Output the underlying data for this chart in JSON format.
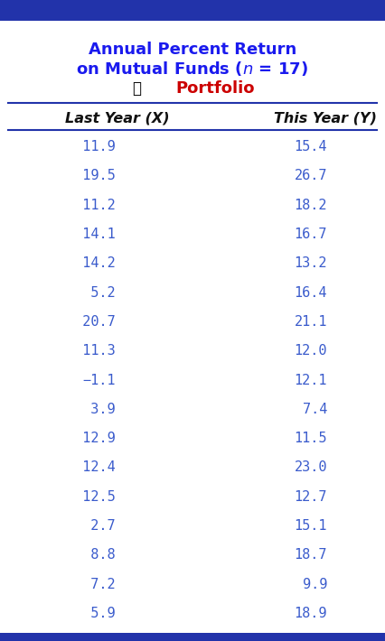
{
  "title_line1": "Annual Percent Return",
  "title_line2_prefix": "on Mutual Funds (",
  "title_line2_italic": "n",
  "title_line2_suffix": " = 17)",
  "subtitle": "Portfolio",
  "col1_header": "Last Year (X)",
  "col2_header": "This Year (Y)",
  "x_values": [
    "  11.9",
    "  19.5",
    "  11.2",
    "  14.1",
    "  14.2",
    "  5.2",
    "  20.7",
    "  11.3",
    "−1.1",
    "  3.9",
    "  12.9",
    "  12.4",
    "  12.5",
    "  2.7",
    "  8.8",
    "  7.2",
    "  5.9"
  ],
  "y_values": [
    "15.4",
    "26.7",
    "18.2",
    "16.7",
    "13.2",
    "16.4",
    "21.1",
    "12.0",
    "12.1",
    "7.4",
    "11.5",
    "23.0",
    "12.7",
    "15.1",
    "18.7",
    "9.9",
    "18.9"
  ],
  "data_color": "#3a5bcc",
  "title_color": "#1a1aee",
  "subtitle_color": "#cc0000",
  "border_color": "#2233aa",
  "header_text_color": "#111111",
  "background_color": "#ffffff",
  "top_bar_color": "#2233aa"
}
